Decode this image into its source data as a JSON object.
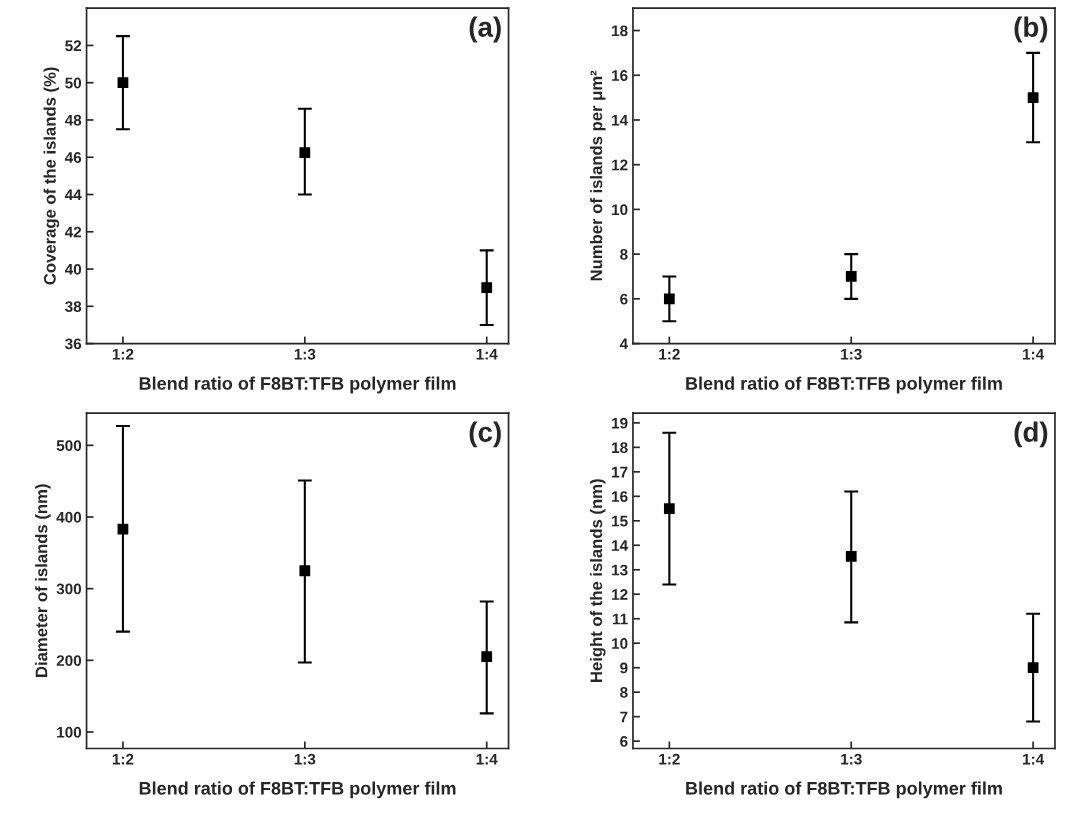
{
  "chart_data": [
    {
      "type": "scatter",
      "categories": [
        "1:2",
        "1:3",
        "1:4"
      ],
      "xlabel": "Blend ratio of F8BT:TFB polymer film",
      "ylabel": "Coverage of the islands (%)",
      "annotations": [
        "(a)"
      ],
      "ylim": [
        36,
        54
      ],
      "yticks": [
        36,
        38,
        40,
        42,
        44,
        46,
        48,
        50,
        52
      ],
      "marker": "square",
      "grid": false,
      "legend": false,
      "series": [
        {
          "color": "#000000",
          "values": [
            50,
            46.25,
            39
          ],
          "errors": [
            [
              47.5,
              52.5
            ],
            [
              44,
              48.6
            ],
            [
              37,
              41
            ]
          ]
        }
      ]
    },
    {
      "type": "scatter",
      "categories": [
        "1:2",
        "1:3",
        "1:4"
      ],
      "xlabel": "Blend ratio of F8BT:TFB polymer film",
      "ylabel": "Number of islands per μm²",
      "annotations": [
        "(b)"
      ],
      "ylim": [
        4,
        19
      ],
      "yticks": [
        4,
        6,
        8,
        10,
        12,
        14,
        16,
        18
      ],
      "marker": "square",
      "grid": false,
      "legend": false,
      "series": [
        {
          "color": "#000000",
          "values": [
            6,
            7,
            15
          ],
          "errors": [
            [
              5,
              7
            ],
            [
              6,
              8
            ],
            [
              13,
              17
            ]
          ]
        }
      ]
    },
    {
      "type": "scatter",
      "categories": [
        "1:2",
        "1:3",
        "1:4"
      ],
      "xlabel": "Blend ratio of F8BT:TFB polymer film",
      "ylabel": "Diameter of islands (nm)",
      "annotations": [
        "(c)"
      ],
      "ylim": [
        77,
        545
      ],
      "yticks": [
        100,
        200,
        300,
        400,
        500
      ],
      "marker": "square",
      "grid": false,
      "legend": false,
      "series": [
        {
          "color": "#000000",
          "values": [
            383,
            325,
            205
          ],
          "errors": [
            [
              240,
              527
            ],
            [
              197,
              451
            ],
            [
              126,
              282
            ]
          ]
        }
      ]
    },
    {
      "type": "scatter",
      "categories": [
        "1:2",
        "1:3",
        "1:4"
      ],
      "xlabel": "Blend ratio of F8BT:TFB polymer film",
      "ylabel": "Height of the islands (nm)",
      "annotations": [
        "(d)"
      ],
      "ylim": [
        5.7,
        19.4
      ],
      "yticks": [
        6,
        7,
        8,
        9,
        10,
        11,
        12,
        13,
        14,
        15,
        16,
        17,
        18,
        19
      ],
      "marker": "square",
      "grid": false,
      "legend": false,
      "series": [
        {
          "color": "#000000",
          "values": [
            15.5,
            13.55,
            9
          ],
          "errors": [
            [
              12.4,
              18.6
            ],
            [
              10.85,
              16.2
            ],
            [
              6.8,
              11.2
            ]
          ]
        }
      ]
    }
  ]
}
